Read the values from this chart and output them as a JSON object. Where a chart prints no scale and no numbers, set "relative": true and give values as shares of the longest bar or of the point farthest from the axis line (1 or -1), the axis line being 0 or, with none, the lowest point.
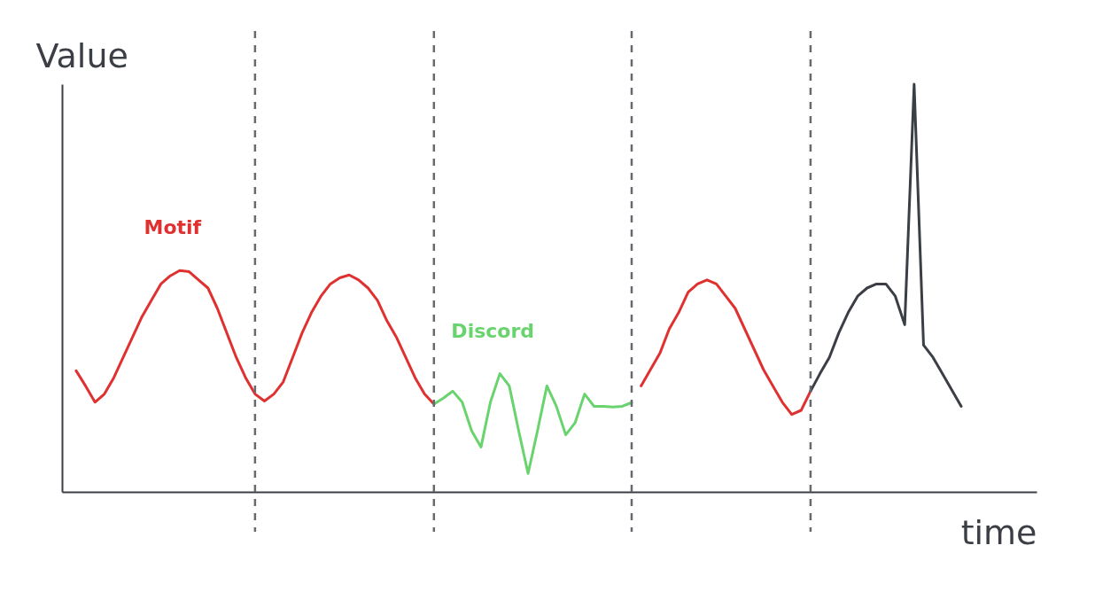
{
  "chart_data": {
    "type": "line",
    "relative": true,
    "xlabel": "time",
    "ylabel": "Value",
    "line_style": "solid",
    "grid": "x",
    "categories": [
      null,
      null,
      null,
      null,
      null,
      null,
      null,
      null,
      null,
      null,
      null,
      null,
      null,
      null,
      null,
      null,
      null,
      null,
      null,
      null,
      null,
      null,
      null,
      null,
      null,
      null,
      null,
      null,
      null,
      null,
      null,
      null,
      null,
      null,
      null,
      null,
      null,
      null,
      null,
      null,
      null,
      null,
      null,
      null,
      null,
      null,
      null,
      null,
      null,
      null,
      null,
      null,
      null,
      null,
      null,
      null,
      null,
      null,
      null,
      null,
      null,
      null,
      null,
      null,
      null,
      null,
      null,
      null,
      null,
      null,
      null,
      null,
      null,
      null,
      null,
      null,
      null,
      null,
      null,
      null,
      null,
      null,
      null,
      null,
      null,
      null,
      null,
      null,
      null,
      null,
      null,
      null,
      null,
      null,
      null
    ],
    "series": [
      {
        "name": "Motif",
        "color": "#e03131",
        "values": [
          0.297,
          0.26,
          0.22,
          0.24,
          0.28,
          0.33,
          0.38,
          0.43,
          0.47,
          0.51,
          0.53,
          0.543,
          0.54,
          0.52,
          0.5,
          0.45,
          0.39,
          0.33,
          0.28,
          0.24,
          0.223,
          0.24,
          0.27,
          0.33,
          0.39,
          0.44,
          0.48,
          0.51,
          0.525,
          0.532,
          0.52,
          0.5,
          0.47,
          0.42,
          0.38,
          0.33,
          0.28,
          0.24,
          0.215,
          null,
          null,
          null,
          null,
          null,
          null,
          null,
          null,
          null,
          null,
          null,
          null,
          null,
          null,
          null,
          null,
          null,
          null,
          null,
          null,
          null,
          0.26,
          0.3,
          0.34,
          0.4,
          0.44,
          0.49,
          0.51,
          0.52,
          0.51,
          0.48,
          0.45,
          0.4,
          0.35,
          0.3,
          0.26,
          0.22,
          0.19,
          0.2,
          0.247,
          null,
          null,
          null,
          null,
          null,
          null,
          null,
          null,
          null,
          null,
          null,
          null,
          null,
          null,
          null,
          null
        ]
      },
      {
        "name": "Discord",
        "color": "#69d36e",
        "values": [
          null,
          null,
          null,
          null,
          null,
          null,
          null,
          null,
          null,
          null,
          null,
          null,
          null,
          null,
          null,
          null,
          null,
          null,
          null,
          null,
          null,
          null,
          null,
          null,
          null,
          null,
          null,
          null,
          null,
          null,
          null,
          null,
          null,
          null,
          null,
          null,
          null,
          null,
          0.215,
          0.23,
          0.247,
          0.22,
          0.15,
          0.11,
          0.22,
          0.29,
          0.26,
          0.15,
          0.045,
          0.15,
          0.26,
          0.21,
          0.14,
          0.17,
          0.24,
          0.21,
          0.21,
          0.208,
          0.21,
          0.219,
          null,
          null,
          null,
          null,
          null,
          null,
          null,
          null,
          null,
          null,
          null,
          null,
          null,
          null,
          null,
          null,
          null,
          null,
          null,
          null,
          null,
          null,
          null,
          null,
          null,
          null,
          null,
          null,
          null,
          null,
          null,
          null,
          null,
          null,
          null
        ]
      },
      {
        "color": "#3b3f45",
        "values": [
          null,
          null,
          null,
          null,
          null,
          null,
          null,
          null,
          null,
          null,
          null,
          null,
          null,
          null,
          null,
          null,
          null,
          null,
          null,
          null,
          null,
          null,
          null,
          null,
          null,
          null,
          null,
          null,
          null,
          null,
          null,
          null,
          null,
          null,
          null,
          null,
          null,
          null,
          null,
          null,
          null,
          null,
          null,
          null,
          null,
          null,
          null,
          null,
          null,
          null,
          null,
          null,
          null,
          null,
          null,
          null,
          null,
          null,
          null,
          null,
          null,
          null,
          null,
          null,
          null,
          null,
          null,
          null,
          null,
          null,
          null,
          null,
          null,
          null,
          null,
          null,
          null,
          null,
          0.247,
          0.29,
          0.33,
          0.39,
          0.44,
          0.48,
          0.5,
          0.51,
          0.51,
          0.48,
          0.41,
          1.0,
          0.36,
          0.33,
          0.29,
          0.25,
          0.21
        ]
      }
    ]
  }
}
